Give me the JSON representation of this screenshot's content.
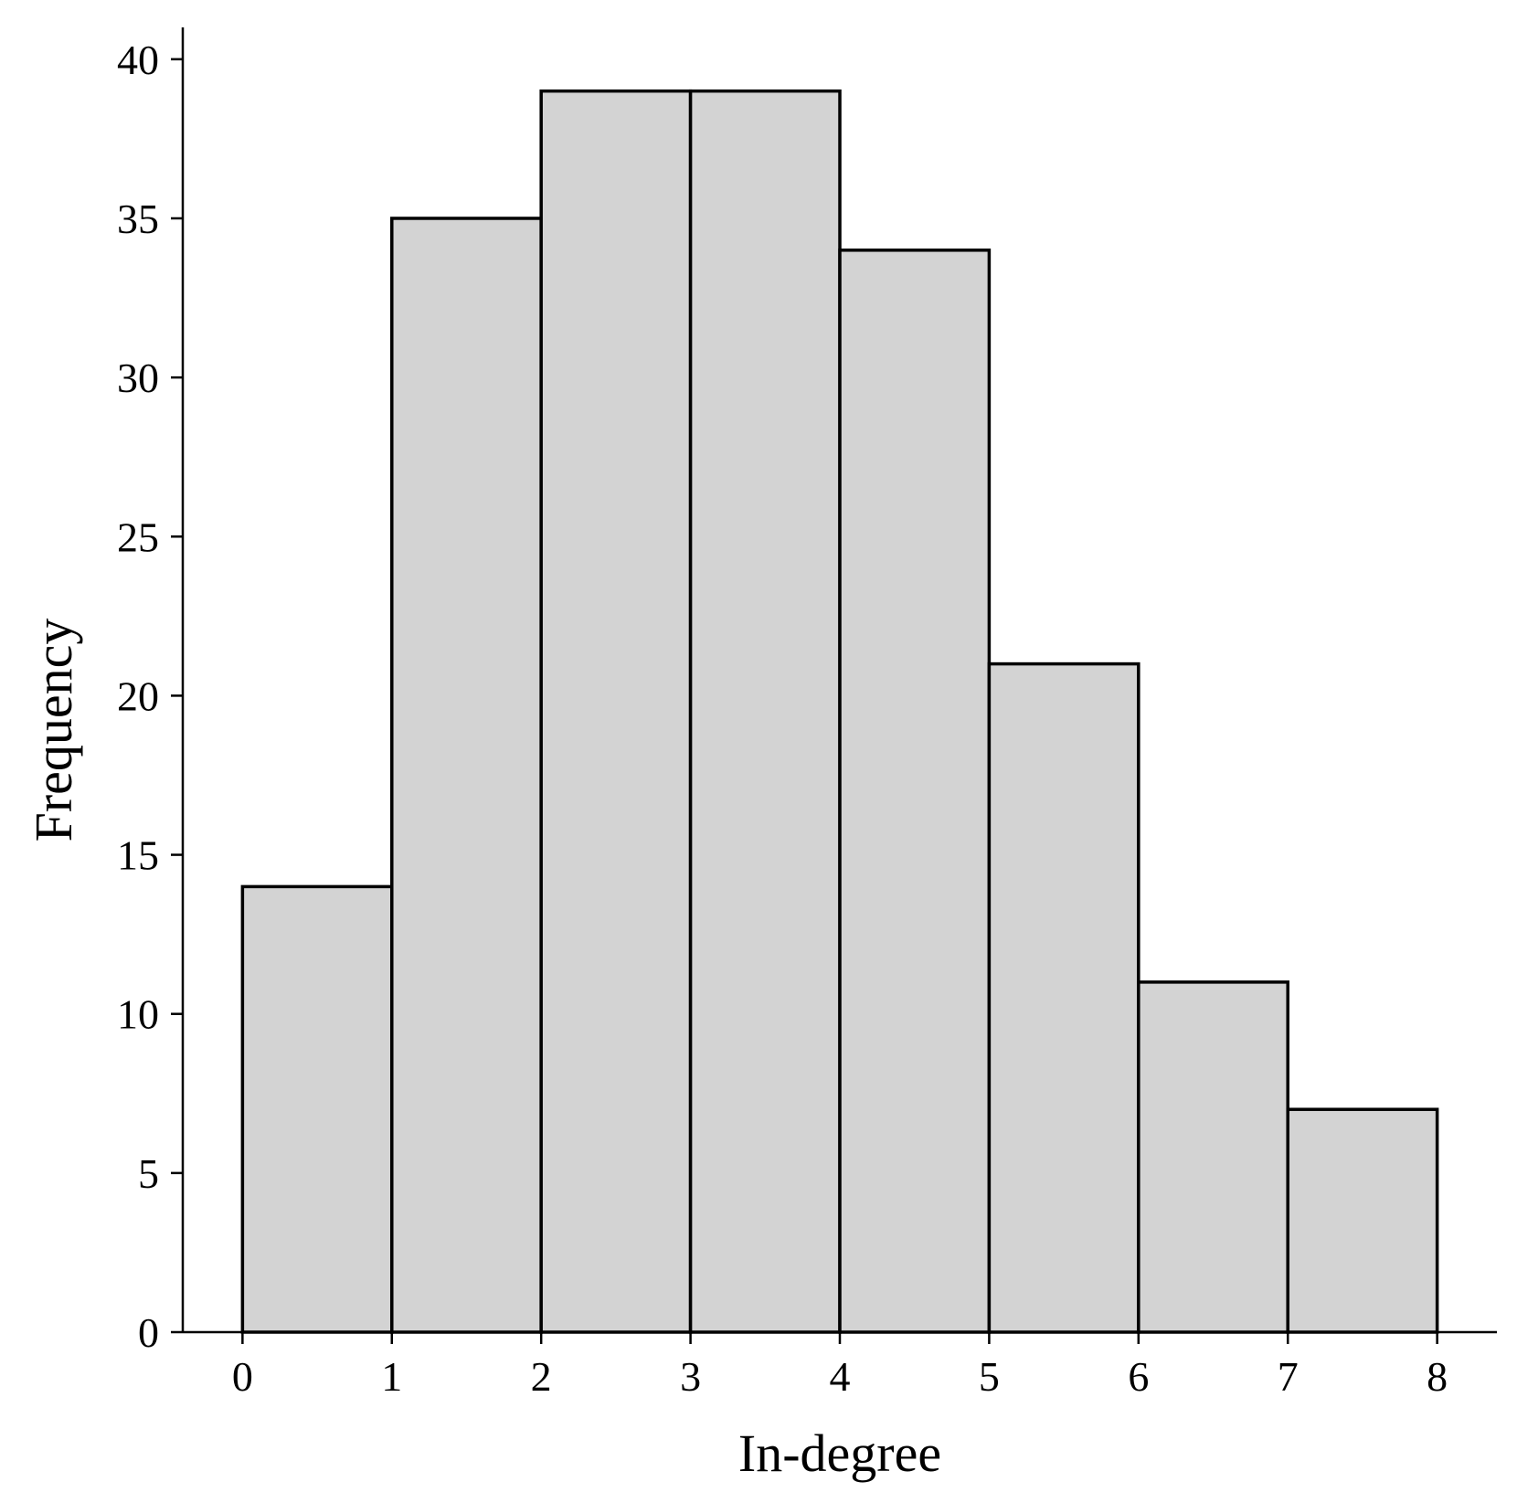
{
  "chart_data": {
    "type": "bar",
    "subtype": "histogram",
    "bins": [
      {
        "start": 0,
        "end": 1,
        "value": 14
      },
      {
        "start": 1,
        "end": 2,
        "value": 35
      },
      {
        "start": 2,
        "end": 3,
        "value": 39
      },
      {
        "start": 3,
        "end": 4,
        "value": 39
      },
      {
        "start": 4,
        "end": 5,
        "value": 34
      },
      {
        "start": 5,
        "end": 6,
        "value": 21
      },
      {
        "start": 6,
        "end": 7,
        "value": 11
      },
      {
        "start": 7,
        "end": 8,
        "value": 7
      }
    ],
    "xlabel": "In-degree",
    "ylabel": "Frequency",
    "x_ticks": [
      0,
      1,
      2,
      3,
      4,
      5,
      6,
      7,
      8
    ],
    "y_ticks": [
      0,
      5,
      10,
      15,
      20,
      25,
      30,
      35,
      40
    ],
    "xlim": [
      -0.4,
      8.4
    ],
    "ylim": [
      0,
      41
    ],
    "grid": false,
    "legend": "none",
    "bar_color": "#d3d3d3",
    "edge_color": "#000000"
  }
}
